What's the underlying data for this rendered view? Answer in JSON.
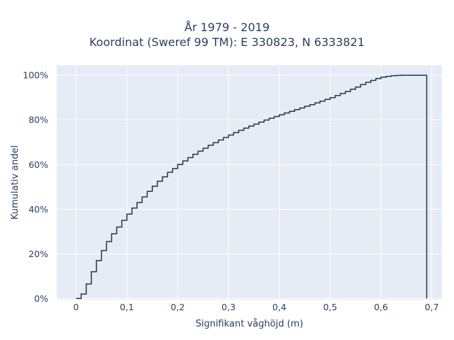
{
  "chart_data": {
    "type": "line",
    "title_lines": [
      "År 1979 - 2019",
      "Koordinat (Sweref 99 TM): E 330823, N 6333821"
    ],
    "xlabel": "Signifikant våghöjd (m)",
    "ylabel": "Kumulativ andel",
    "xlim": [
      -0.038,
      0.72
    ],
    "ylim": [
      -0.005,
      1.045
    ],
    "x_ticks": [
      0,
      0.1,
      0.2,
      0.3,
      0.4,
      0.5,
      0.6,
      0.7
    ],
    "x_tick_labels": [
      "0",
      "0,1",
      "0,2",
      "0,3",
      "0,4",
      "0,5",
      "0,6",
      "0,7"
    ],
    "y_ticks": [
      0,
      0.2,
      0.4,
      0.6,
      0.8,
      1.0
    ],
    "y_tick_labels": [
      "0%",
      "20%",
      "40%",
      "60%",
      "80%",
      "100%"
    ],
    "grid": true,
    "line_shape": "step",
    "series": [
      {
        "color": "#2a3547",
        "x": [
          0,
          0.01,
          0.02,
          0.03,
          0.04,
          0.05,
          0.06,
          0.07,
          0.08,
          0.09,
          0.1,
          0.11,
          0.12,
          0.13,
          0.14,
          0.15,
          0.16,
          0.17,
          0.18,
          0.19,
          0.2,
          0.21,
          0.22,
          0.23,
          0.24,
          0.25,
          0.26,
          0.27,
          0.28,
          0.29,
          0.3,
          0.31,
          0.32,
          0.33,
          0.34,
          0.35,
          0.36,
          0.37,
          0.38,
          0.39,
          0.4,
          0.41,
          0.42,
          0.43,
          0.44,
          0.45,
          0.46,
          0.47,
          0.48,
          0.49,
          0.5,
          0.51,
          0.52,
          0.53,
          0.54,
          0.55,
          0.56,
          0.57,
          0.58,
          0.59,
          0.6,
          0.61,
          0.62,
          0.63,
          0.64,
          0.65,
          0.66,
          0.67,
          0.68,
          0.69,
          0.69
        ],
        "y": [
          0,
          0.02,
          0.065,
          0.12,
          0.17,
          0.215,
          0.255,
          0.29,
          0.32,
          0.35,
          0.378,
          0.405,
          0.43,
          0.455,
          0.48,
          0.503,
          0.525,
          0.545,
          0.565,
          0.582,
          0.6,
          0.616,
          0.631,
          0.646,
          0.66,
          0.673,
          0.686,
          0.698,
          0.71,
          0.721,
          0.732,
          0.743,
          0.753,
          0.763,
          0.772,
          0.781,
          0.79,
          0.799,
          0.807,
          0.815,
          0.823,
          0.831,
          0.838,
          0.846,
          0.853,
          0.861,
          0.868,
          0.876,
          0.884,
          0.892,
          0.9,
          0.909,
          0.918,
          0.927,
          0.937,
          0.947,
          0.958,
          0.968,
          0.977,
          0.985,
          0.991,
          0.995,
          0.998,
          0.999,
          1.0,
          1.0,
          1.0,
          1.0,
          1.0,
          1.0,
          0
        ]
      }
    ]
  }
}
